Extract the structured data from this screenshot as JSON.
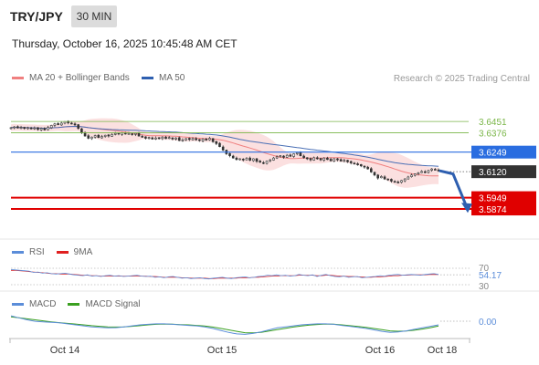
{
  "header": {
    "symbol": "TRY/JPY",
    "timeframe": "30 MIN",
    "datetime": "Thursday, October 16, 2025 10:45:48 AM CET"
  },
  "legend": {
    "ma20_bb": "MA 20 + Bollinger Bands",
    "ma50": "MA 50",
    "credit": "Research © 2025 Trading Central",
    "rsi": "RSI",
    "rsi_ma": "9MA",
    "macd": "MACD",
    "macd_signal": "MACD Signal"
  },
  "colors": {
    "bollinger_fill": "#fbe0e0",
    "ma20": "#f08080",
    "ma50": "#4a6fb5",
    "candle": "#333333",
    "resistance": "#7ab648",
    "pivot": "#2a6de0",
    "support": "#e00000",
    "current": "#333333",
    "arrow": "#2e5fb0",
    "rsi": "#5b8dd9",
    "rsi_ma": "#e02020",
    "macd": "#5b8dd9",
    "macd_signal": "#3aa020"
  },
  "chart_data": {
    "type": "candlestick",
    "ylim": [
      3.57,
      3.665
    ],
    "x_ticks": [
      "Oct 14",
      "Oct 15",
      "Oct 16",
      "Oct 18"
    ],
    "levels": [
      {
        "value": 3.6451,
        "label": "3.6451",
        "kind": "resistance"
      },
      {
        "value": 3.6376,
        "label": "3.6376",
        "kind": "resistance"
      },
      {
        "value": 3.6249,
        "label": "3.6249",
        "kind": "pivot"
      },
      {
        "value": 3.612,
        "label": "3.6120",
        "kind": "current"
      },
      {
        "value": 3.5949,
        "label": "3.5949",
        "kind": "support"
      },
      {
        "value": 3.5874,
        "label": "3.5874",
        "kind": "support"
      }
    ],
    "close": [
      3.641,
      3.6415,
      3.6408,
      3.6412,
      3.6405,
      3.641,
      3.6402,
      3.6408,
      3.6398,
      3.6405,
      3.6395,
      3.6412,
      3.6425,
      3.6435,
      3.643,
      3.644,
      3.645,
      3.6442,
      3.6435,
      3.6428,
      3.6405,
      3.6378,
      3.6355,
      3.634,
      3.6348,
      3.6358,
      3.6345,
      3.6352,
      3.636,
      3.6355,
      3.6365,
      3.6372,
      3.6368,
      3.6375,
      3.6368,
      3.6372,
      3.6365,
      3.6372,
      3.6355,
      3.635,
      3.634,
      3.6345,
      3.6335,
      3.6342,
      3.634,
      3.6348,
      3.6338,
      3.6345,
      3.6335,
      3.6342,
      3.6325,
      3.633,
      3.6338,
      3.6332,
      3.6338,
      3.633,
      3.6325,
      3.6335,
      3.6328,
      3.634,
      3.6318,
      3.6305,
      3.6285,
      3.6262,
      3.6238,
      3.6225,
      3.621,
      3.62,
      3.6205,
      3.6198,
      3.6208,
      3.6195,
      3.6205,
      3.6188,
      3.6182,
      3.6175,
      3.619,
      3.6198,
      3.621,
      3.6218,
      3.6225,
      3.6215,
      3.6228,
      3.6222,
      3.6238,
      3.6245,
      3.6225,
      3.6212,
      3.6205,
      3.6198,
      3.6212,
      3.6205,
      3.6198,
      3.621,
      3.62,
      3.6192,
      3.6205,
      3.6198,
      3.619,
      3.6195,
      3.6185,
      3.6178,
      3.6172,
      3.6165,
      3.6158,
      3.615,
      3.6138,
      3.6118,
      3.6098,
      3.6078,
      3.6088,
      3.6072,
      3.6068,
      3.6058,
      3.6052,
      3.6048,
      3.6062,
      3.6072,
      3.6085,
      3.6098,
      3.6105,
      3.6112,
      3.6122,
      3.6115,
      3.6128,
      3.6138,
      3.6132,
      3.6125
    ],
    "rsi": {
      "ylim": [
        30,
        70
      ],
      "ticks": [
        70,
        30
      ],
      "value": 54.17,
      "value_label": "54.17",
      "series": [
        67,
        66,
        65,
        64,
        63,
        60,
        61,
        58,
        59,
        57,
        56,
        57,
        58,
        56,
        54,
        53,
        52,
        54,
        51,
        52,
        50,
        52,
        53,
        51,
        52,
        50,
        51,
        52,
        53,
        51,
        50,
        51,
        48,
        49,
        47,
        49,
        50,
        48,
        46,
        47,
        45,
        46,
        47,
        45,
        44,
        46,
        47,
        48,
        46,
        45,
        47,
        48,
        49,
        47,
        48,
        50,
        51,
        53,
        52,
        54,
        52,
        53,
        51,
        52,
        55,
        53,
        52,
        54,
        50,
        53,
        55,
        52,
        50,
        49,
        51,
        48,
        49,
        50,
        47,
        48,
        49,
        50,
        52,
        51,
        53,
        54,
        55,
        53,
        54,
        55,
        54,
        53,
        55,
        56,
        57,
        55
      ],
      "ma": [
        65,
        65,
        64,
        63,
        62,
        61,
        60,
        59,
        58,
        57,
        57,
        56,
        56,
        56,
        55,
        54,
        53,
        53,
        52,
        52,
        51,
        51,
        51,
        51,
        51,
        51,
        51,
        51,
        51,
        51,
        51,
        50,
        50,
        49,
        48,
        48,
        48,
        48,
        47,
        47,
        46,
        46,
        46,
        46,
        45,
        45,
        46,
        46,
        46,
        46,
        46,
        47,
        47,
        47,
        48,
        48,
        49,
        50,
        51,
        51,
        52,
        52,
        52,
        52,
        53,
        53,
        53,
        53,
        52,
        52,
        53,
        53,
        52,
        51,
        51,
        50,
        50,
        49,
        49,
        48,
        48,
        49,
        49,
        50,
        51,
        52,
        52,
        53,
        53,
        54,
        54,
        54,
        54,
        55,
        55,
        55
      ]
    },
    "macd": {
      "value": 0.0,
      "value_label": "0.00",
      "macd": [
        0.9,
        0.7,
        0.5,
        0.35,
        0.3,
        0.25,
        0.2,
        0.1,
        0.0,
        -0.1,
        -0.2,
        -0.25,
        -0.3,
        -0.28,
        -0.2,
        -0.1,
        0.0,
        0.05,
        0.1,
        0.1,
        0.05,
        0.0,
        -0.05,
        -0.1,
        -0.2,
        -0.35,
        -0.55,
        -0.75,
        -0.9,
        -0.95,
        -0.85,
        -0.7,
        -0.5,
        -0.3,
        -0.2,
        -0.1,
        0.0,
        0.05,
        0.1,
        0.1,
        0.05,
        -0.05,
        -0.15,
        -0.25,
        -0.35,
        -0.5,
        -0.65,
        -0.75,
        -0.7,
        -0.6,
        -0.45,
        -0.3,
        -0.15,
        0.0
      ],
      "signal": [
        0.8,
        0.7,
        0.6,
        0.5,
        0.4,
        0.3,
        0.22,
        0.15,
        0.08,
        0.0,
        -0.08,
        -0.15,
        -0.2,
        -0.22,
        -0.2,
        -0.15,
        -0.08,
        0.0,
        0.05,
        0.08,
        0.06,
        0.03,
        0.0,
        -0.05,
        -0.12,
        -0.22,
        -0.35,
        -0.5,
        -0.65,
        -0.78,
        -0.8,
        -0.75,
        -0.62,
        -0.48,
        -0.35,
        -0.22,
        -0.12,
        -0.02,
        0.04,
        0.08,
        0.06,
        0.0,
        -0.08,
        -0.16,
        -0.25,
        -0.36,
        -0.48,
        -0.6,
        -0.64,
        -0.62,
        -0.54,
        -0.42,
        -0.28,
        -0.12
      ]
    }
  }
}
